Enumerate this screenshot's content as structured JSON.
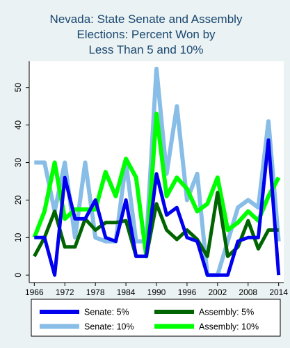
{
  "chart_data": {
    "type": "line",
    "title_lines": [
      "Nevada: State Senate and Assembly",
      "Elections: Percent Won by",
      "Less Than 5 and 10%"
    ],
    "xlabel": "",
    "ylabel": "",
    "xlim": [
      1965,
      2015
    ],
    "ylim": [
      -2,
      57
    ],
    "x_ticks": [
      1966,
      1972,
      1978,
      1984,
      1990,
      1996,
      2002,
      2008,
      2014
    ],
    "y_ticks": [
      0,
      10,
      20,
      30,
      40,
      50
    ],
    "grid": false,
    "legend_position": "bottom",
    "x": [
      1966,
      1968,
      1970,
      1972,
      1974,
      1976,
      1978,
      1980,
      1982,
      1984,
      1986,
      1988,
      1990,
      1992,
      1994,
      1996,
      1998,
      2000,
      2002,
      2004,
      2006,
      2008,
      2010,
      2012,
      2014
    ],
    "series": [
      {
        "name": "Senate: 5%",
        "color": "#0000ee",
        "width": 5,
        "values": [
          10,
          10,
          0,
          26,
          15,
          15,
          20,
          10,
          9,
          20,
          5,
          5,
          27,
          16,
          18,
          10,
          9,
          0,
          0,
          0,
          9,
          10,
          10,
          36,
          0
        ]
      },
      {
        "name": "Assembly: 5%",
        "color": "#006400",
        "width": 5,
        "values": [
          5,
          10,
          17,
          7.5,
          7.5,
          15,
          12,
          14,
          14,
          14.5,
          5,
          5,
          19,
          12,
          9.5,
          12,
          9.5,
          5,
          22,
          5,
          7.5,
          14.5,
          7,
          12,
          12
        ]
      },
      {
        "name": "Senate: 10%",
        "color": "#87bde6",
        "width": 6,
        "values": [
          30,
          30,
          17,
          30,
          10,
          30,
          10,
          9,
          9,
          30,
          9,
          9,
          55,
          27,
          45,
          20,
          27,
          0,
          0,
          9,
          18,
          20,
          18,
          41,
          9
        ]
      },
      {
        "name": "Assembly: 10%",
        "color": "#00ff00",
        "width": 6,
        "values": [
          10,
          17,
          30,
          15,
          17.5,
          17.5,
          17.5,
          27.5,
          21,
          31,
          26,
          5,
          43,
          21,
          26,
          23,
          17,
          19,
          26,
          12,
          14,
          17,
          14.5,
          21,
          26
        ]
      }
    ],
    "legend_order": [
      0,
      1,
      2,
      3
    ]
  }
}
